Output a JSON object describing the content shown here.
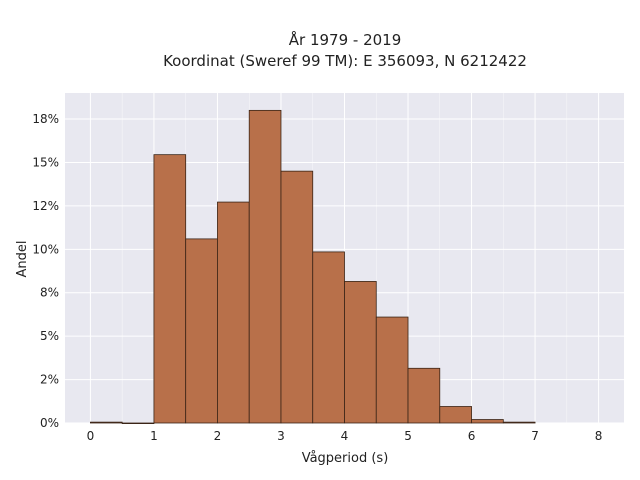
{
  "chart_data": {
    "type": "bar",
    "title_line1": "År 1979 - 2019",
    "title_line2": "Koordinat (Sweref 99 TM): E 356093, N 6212422",
    "xlabel": "Vågperiod (s)",
    "ylabel": "Andel",
    "bin_width": 0.5,
    "bins_start": [
      0,
      0.5,
      1,
      1.5,
      2,
      2.5,
      3,
      3.5,
      4,
      4.5,
      5,
      5.5,
      6,
      6.5
    ],
    "values": [
      0.0005,
      0,
      0.1545,
      0.106,
      0.1272,
      0.18,
      0.145,
      0.0985,
      0.0815,
      0.061,
      0.0315,
      0.0095,
      0.002,
      0.0005
    ],
    "xlim": [
      -0.4,
      8.4
    ],
    "ylim": [
      0,
      0.19
    ],
    "xticks": [
      0,
      1,
      2,
      3,
      4,
      5,
      6,
      7,
      8
    ],
    "yticks": [
      0,
      0.025,
      0.05,
      0.075,
      0.1,
      0.125,
      0.15,
      0.175
    ],
    "ytick_labels": [
      "0%",
      "2%",
      "5%",
      "8%",
      "10%",
      "12%",
      "15%",
      "18%"
    ],
    "grid": true,
    "colors": {
      "bar_fill": "#b8704a",
      "bar_edge": "#3a2416",
      "plot_bg": "#e8e8f0",
      "grid": "#ffffff"
    }
  }
}
